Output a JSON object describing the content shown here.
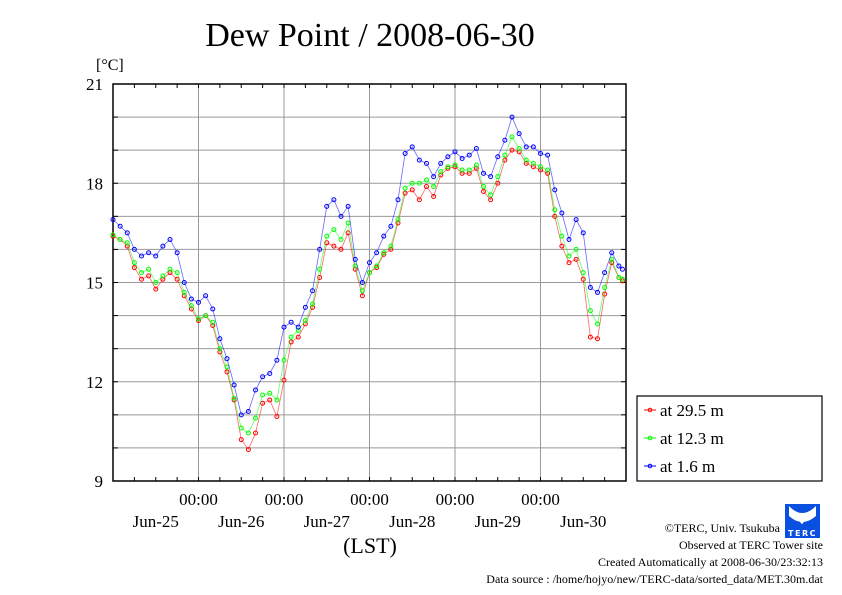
{
  "chart_data": {
    "type": "line",
    "title": "Dew Point / 2008-06-30",
    "ylabel": "[°C]",
    "xlabel": "(LST)",
    "ylim": [
      9,
      21
    ],
    "yticks": [
      9,
      12,
      15,
      18,
      21
    ],
    "x_unit": "hours since Jun-25 00:00",
    "xlim": [
      0,
      144
    ],
    "grid": true,
    "x_midnight_labels": [
      "00:00",
      "00:00",
      "00:00",
      "00:00",
      "00:00"
    ],
    "x_midnight_hours": [
      24,
      48,
      72,
      96,
      120
    ],
    "x_day_labels": [
      "Jun-25",
      "Jun-26",
      "Jun-27",
      "Jun-28",
      "Jun-29",
      "Jun-30"
    ],
    "legend_position": "right-bottom",
    "x": [
      0,
      2,
      4,
      6,
      8,
      10,
      12,
      14,
      16,
      18,
      20,
      22,
      24,
      26,
      28,
      30,
      32,
      34,
      36,
      38,
      40,
      42,
      44,
      46,
      48,
      50,
      52,
      54,
      56,
      58,
      60,
      62,
      64,
      66,
      68,
      70,
      72,
      74,
      76,
      78,
      80,
      82,
      84,
      86,
      88,
      90,
      92,
      94,
      96,
      98,
      100,
      102,
      104,
      106,
      108,
      110,
      112,
      114,
      116,
      118,
      120,
      122,
      124,
      126,
      128,
      130,
      132,
      134,
      136,
      138,
      140,
      142,
      143
    ],
    "series": [
      {
        "name": "at 29.5 m",
        "color": "#ff0000",
        "values": [
          16.4,
          16.3,
          16.1,
          15.45,
          15.1,
          15.2,
          14.8,
          15.1,
          15.3,
          15.1,
          14.6,
          14.2,
          13.85,
          14.0,
          13.7,
          12.9,
          12.3,
          11.45,
          10.25,
          9.95,
          10.45,
          11.35,
          11.45,
          10.95,
          12.05,
          13.2,
          13.35,
          13.75,
          14.25,
          15.15,
          16.2,
          16.1,
          16.0,
          16.5,
          15.4,
          14.6,
          15.3,
          15.45,
          15.85,
          16.0,
          16.8,
          17.7,
          17.8,
          17.5,
          17.9,
          17.6,
          18.25,
          18.45,
          18.5,
          18.3,
          18.3,
          18.45,
          17.75,
          17.5,
          18.0,
          18.7,
          19.0,
          18.95,
          18.6,
          18.5,
          18.4,
          18.3,
          17.0,
          16.1,
          15.6,
          15.7,
          15.1,
          13.35,
          13.3,
          14.65,
          15.6,
          15.15,
          15.05
        ]
      },
      {
        "name": "at 12.3 m",
        "color": "#00ff00",
        "values": [
          16.44,
          16.3,
          16.2,
          15.6,
          15.3,
          15.4,
          15.0,
          15.2,
          15.4,
          15.3,
          14.7,
          14.3,
          13.9,
          14.0,
          13.8,
          13.0,
          12.45,
          11.5,
          10.6,
          10.45,
          10.9,
          11.6,
          11.65,
          11.45,
          12.65,
          13.35,
          13.55,
          13.85,
          14.35,
          15.4,
          16.4,
          16.6,
          16.3,
          16.8,
          15.5,
          14.75,
          15.3,
          15.5,
          15.9,
          16.1,
          16.9,
          17.85,
          18.0,
          18.0,
          18.1,
          17.9,
          18.35,
          18.5,
          18.55,
          18.4,
          18.4,
          18.55,
          17.9,
          17.65,
          18.2,
          18.85,
          19.4,
          19.05,
          18.7,
          18.6,
          18.5,
          18.4,
          17.2,
          16.4,
          15.8,
          16.0,
          15.3,
          14.15,
          13.75,
          14.85,
          15.7,
          15.15,
          15.1
        ]
      },
      {
        "name": "at 1.6 m",
        "color": "#0000ff",
        "values": [
          16.9,
          16.7,
          16.5,
          16.0,
          15.8,
          15.9,
          15.8,
          16.1,
          16.3,
          15.9,
          15.0,
          14.5,
          14.4,
          14.6,
          14.2,
          13.3,
          12.7,
          11.9,
          11.0,
          11.1,
          11.75,
          12.15,
          12.25,
          12.65,
          13.65,
          13.8,
          13.65,
          14.25,
          14.75,
          16.0,
          17.3,
          17.5,
          17.0,
          17.3,
          15.7,
          15.0,
          15.6,
          15.9,
          16.4,
          16.7,
          17.5,
          18.9,
          19.1,
          18.7,
          18.6,
          18.2,
          18.6,
          18.8,
          18.95,
          18.75,
          18.85,
          19.05,
          18.3,
          18.2,
          18.8,
          19.3,
          20.0,
          19.5,
          19.1,
          19.1,
          18.9,
          18.85,
          17.8,
          17.1,
          16.3,
          16.9,
          16.5,
          14.85,
          14.7,
          15.3,
          15.9,
          15.5,
          15.4
        ]
      }
    ]
  },
  "footer": {
    "copyright": "©TERC, Univ. Tsukuba",
    "site": "Observed at TERC Tower site",
    "created": "Created Automatically at 2008-06-30/23:32:13",
    "source": "Data source : /home/hojyo/new/TERC-data/sorted_data/MET.30m.dat",
    "logo_text": "TERC"
  }
}
